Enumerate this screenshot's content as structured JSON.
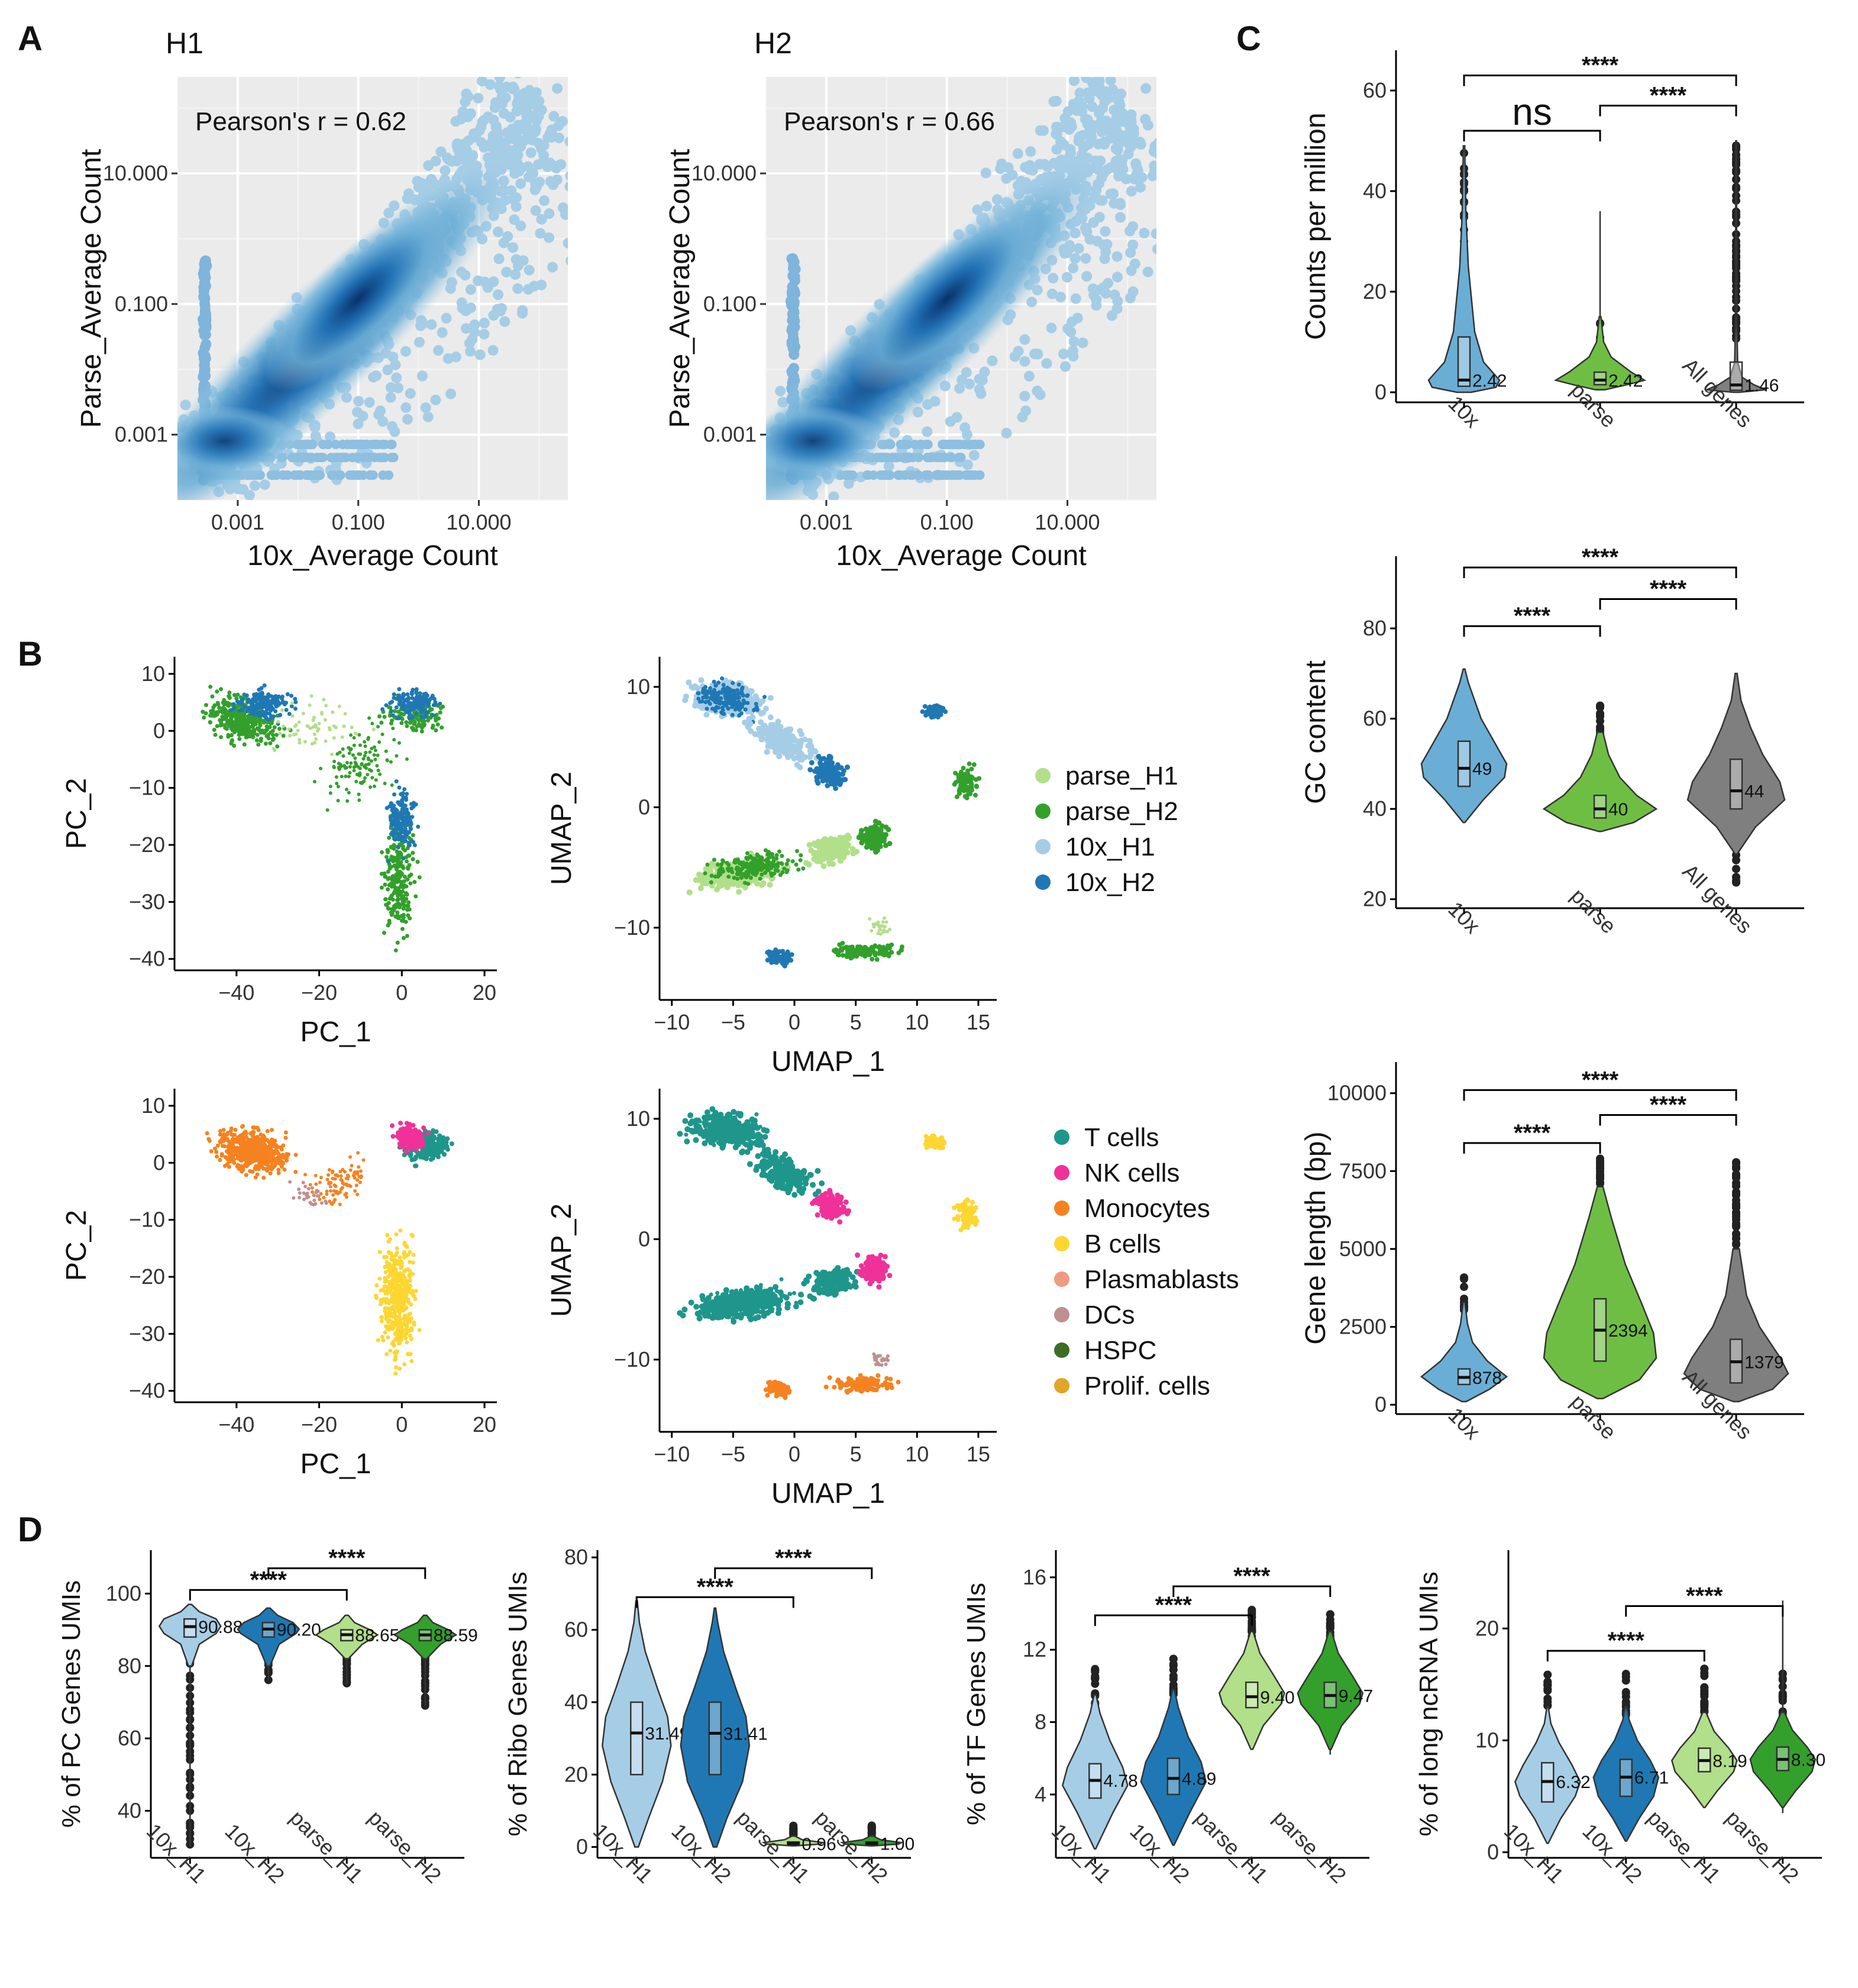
{
  "panels": {
    "A": "A",
    "B": "B",
    "C": "C",
    "D": "D"
  },
  "colors": {
    "c10x": "#6aaed6",
    "cparse": "#6fbe44",
    "call": "#7f7f7f",
    "h1_10x": "#a6cde6",
    "h2_10x": "#1f78b4",
    "h1_parse": "#b2df8a",
    "h2_parse": "#33a02c",
    "tcells": "#1f968b",
    "nk": "#f0319a",
    "mono": "#f58220",
    "b": "#fdd631",
    "plasma": "#f09a82",
    "dcs": "#c09090",
    "hspc": "#3c6e24",
    "prolif": "#e0a52a",
    "panel_bg": "#ebebeb"
  },
  "chart_data": [
    {
      "id": "A_H1",
      "type": "scatter",
      "title": "H1",
      "xlabel": "10x_Average Count",
      "ylabel": "Parse_Average Count",
      "xscale": "log10",
      "yscale": "log10",
      "xlim": [
        0.0001,
        300
      ],
      "ylim": [
        0.0001,
        300
      ],
      "xticks": [
        0.001,
        0.1,
        10
      ],
      "xtick_labels": [
        "0.001",
        "0.100",
        "10.000"
      ],
      "yticks": [
        0.001,
        0.1,
        10
      ],
      "ytick_labels": [
        "0.001",
        "0.100",
        "10.000"
      ],
      "annotation": "Pearson's r = 0.62",
      "pearson_r": 0.62
    },
    {
      "id": "A_H2",
      "type": "scatter",
      "title": "H2",
      "xlabel": "10x_Average Count",
      "ylabel": "Parse_Average Count",
      "xscale": "log10",
      "yscale": "log10",
      "xlim": [
        0.0001,
        300
      ],
      "ylim": [
        0.0001,
        300
      ],
      "xticks": [
        0.001,
        0.1,
        10
      ],
      "xtick_labels": [
        "0.001",
        "0.100",
        "10.000"
      ],
      "yticks": [
        0.001,
        0.1,
        10
      ],
      "ytick_labels": [
        "0.001",
        "0.100",
        "10.000"
      ],
      "annotation": "Pearson's r = 0.66",
      "pearson_r": 0.66
    },
    {
      "id": "B_PCA_sample",
      "type": "scatter",
      "xlabel": "PC_1",
      "ylabel": "PC_2",
      "xlim": [
        -55,
        23
      ],
      "ylim": [
        -42,
        13
      ],
      "xticks": [
        -40,
        -20,
        0,
        20
      ],
      "xtick_labels": [
        "−40",
        "−20",
        "0",
        "20"
      ],
      "yticks": [
        10,
        0,
        -10,
        -20,
        -30,
        -40
      ],
      "ytick_labels": [
        "10",
        "0",
        "−10",
        "−20",
        "−30",
        "−40"
      ],
      "legend": [
        {
          "name": "parse_H1",
          "color": "#b2df8a"
        },
        {
          "name": "parse_H2",
          "color": "#33a02c"
        },
        {
          "name": "10x_H1",
          "color": "#a6cde6"
        },
        {
          "name": "10x_H2",
          "color": "#1f78b4"
        }
      ]
    },
    {
      "id": "B_UMAP_sample",
      "type": "scatter",
      "xlabel": "UMAP_1",
      "ylabel": "UMAP_2",
      "xlim": [
        -11,
        16.5
      ],
      "ylim": [
        -16,
        12.5
      ],
      "xticks": [
        -10,
        -5,
        0,
        5,
        10,
        15
      ],
      "xtick_labels": [
        "−10",
        "−5",
        "0",
        "5",
        "10",
        "15"
      ],
      "yticks": [
        10,
        0,
        -10
      ],
      "ytick_labels": [
        "10",
        "0",
        "−10"
      ]
    },
    {
      "id": "B_PCA_celltype",
      "type": "scatter",
      "xlabel": "PC_1",
      "ylabel": "PC_2",
      "xlim": [
        -55,
        23
      ],
      "ylim": [
        -42,
        13
      ],
      "xticks": [
        -40,
        -20,
        0,
        20
      ],
      "xtick_labels": [
        "−40",
        "−20",
        "0",
        "20"
      ],
      "yticks": [
        10,
        0,
        -10,
        -20,
        -30,
        -40
      ],
      "ytick_labels": [
        "10",
        "0",
        "−10",
        "−20",
        "−30",
        "−40"
      ],
      "legend": [
        {
          "name": "T cells",
          "color": "#1f968b"
        },
        {
          "name": "NK cells",
          "color": "#f0319a"
        },
        {
          "name": "Monocytes",
          "color": "#f58220"
        },
        {
          "name": "B cells",
          "color": "#fdd631"
        },
        {
          "name": "Plasmablasts",
          "color": "#f09a82"
        },
        {
          "name": "DCs",
          "color": "#c09090"
        },
        {
          "name": "HSPC",
          "color": "#3c6e24"
        },
        {
          "name": "Prolif. cells",
          "color": "#e0a52a"
        }
      ]
    },
    {
      "id": "B_UMAP_celltype",
      "type": "scatter",
      "xlabel": "UMAP_1",
      "ylabel": "UMAP_2",
      "xlim": [
        -11,
        16.5
      ],
      "ylim": [
        -16,
        12.5
      ],
      "xticks": [
        -10,
        -5,
        0,
        5,
        10,
        15
      ],
      "xtick_labels": [
        "−10",
        "−5",
        "0",
        "5",
        "10",
        "15"
      ],
      "yticks": [
        10,
        0,
        -10
      ],
      "ytick_labels": [
        "10",
        "0",
        "−10"
      ]
    },
    {
      "id": "C_cpm",
      "type": "violin",
      "ylabel": "Counts per million",
      "ylim": [
        -2,
        68
      ],
      "yticks": [
        0,
        20,
        40,
        60
      ],
      "ytick_labels": [
        "0",
        "20",
        "40",
        "60"
      ],
      "categories": [
        "10x",
        "parse",
        "All genes"
      ],
      "medians": [
        2.42,
        2.42,
        1.46
      ],
      "median_labels": [
        "2.42",
        "2.42",
        "1.46"
      ],
      "comparisons": [
        {
          "pair": [
            "10x",
            "parse"
          ],
          "label": "ns"
        },
        {
          "pair": [
            "parse",
            "All genes"
          ],
          "label": "****"
        },
        {
          "pair": [
            "10x",
            "All genes"
          ],
          "label": "****"
        }
      ]
    },
    {
      "id": "C_gc",
      "type": "violin",
      "ylabel": "GC content",
      "ylim": [
        18,
        96
      ],
      "yticks": [
        20,
        40,
        60,
        80
      ],
      "ytick_labels": [
        "20",
        "40",
        "60",
        "80"
      ],
      "categories": [
        "10x",
        "parse",
        "All genes"
      ],
      "medians": [
        49,
        40,
        44
      ],
      "median_labels": [
        "49",
        "40",
        "44"
      ],
      "comparisons": [
        {
          "pair": [
            "10x",
            "parse"
          ],
          "label": "****"
        },
        {
          "pair": [
            "parse",
            "All genes"
          ],
          "label": "****"
        },
        {
          "pair": [
            "10x",
            "All genes"
          ],
          "label": "****"
        }
      ]
    },
    {
      "id": "C_len",
      "type": "violin",
      "ylabel": "Gene length (bp)",
      "ylim": [
        -300,
        11000
      ],
      "yticks": [
        0,
        2500,
        5000,
        7500,
        10000
      ],
      "ytick_labels": [
        "0",
        "2500",
        "5000",
        "7500",
        "10000"
      ],
      "categories": [
        "10x",
        "parse",
        "All genes"
      ],
      "medians": [
        878,
        2394,
        1379
      ],
      "median_labels": [
        "878",
        "2394",
        "1379"
      ],
      "comparisons": [
        {
          "pair": [
            "10x",
            "parse"
          ],
          "label": "****"
        },
        {
          "pair": [
            "parse",
            "All genes"
          ],
          "label": "****"
        },
        {
          "pair": [
            "10x",
            "All genes"
          ],
          "label": "****"
        }
      ]
    },
    {
      "id": "D_pc",
      "type": "violin",
      "ylabel": "% of PC Genes UMIs",
      "ylim": [
        27,
        112
      ],
      "yticks": [
        40,
        60,
        80,
        100
      ],
      "ytick_labels": [
        "40",
        "60",
        "80",
        "100"
      ],
      "categories": [
        "10x_H1",
        "10x_H2",
        "parse_H1",
        "parse_H2"
      ],
      "medians": [
        90.88,
        90.2,
        88.65,
        88.59
      ],
      "median_labels": [
        "90.88",
        "90.20",
        "88.65",
        "88.59"
      ],
      "comparisons": [
        {
          "pair": [
            "10x_H1",
            "parse_H1"
          ],
          "label": "****"
        },
        {
          "pair": [
            "10x_H2",
            "parse_H2"
          ],
          "label": "****"
        }
      ]
    },
    {
      "id": "D_ribo",
      "type": "violin",
      "ylabel": "% of Ribo Genes UMIs",
      "ylim": [
        -3,
        82
      ],
      "yticks": [
        0,
        20,
        40,
        60,
        80
      ],
      "ytick_labels": [
        "0",
        "20",
        "40",
        "60",
        "80"
      ],
      "categories": [
        "10x_H1",
        "10x_H2",
        "parse_H1",
        "parse_H2"
      ],
      "medians": [
        31.49,
        31.41,
        0.96,
        1.0
      ],
      "median_labels": [
        "31.49",
        "31.41",
        "0.96",
        "1.00"
      ],
      "comparisons": [
        {
          "pair": [
            "10x_H1",
            "parse_H1"
          ],
          "label": "****"
        },
        {
          "pair": [
            "10x_H2",
            "parse_H2"
          ],
          "label": "****"
        }
      ]
    },
    {
      "id": "D_tf",
      "type": "violin",
      "ylabel": "% of TF Genes UMIs",
      "ylim": [
        0.5,
        17.5
      ],
      "yticks": [
        4,
        8,
        12,
        16
      ],
      "ytick_labels": [
        "4",
        "8",
        "12",
        "16"
      ],
      "categories": [
        "10x_H1",
        "10x_H2",
        "parse_H1",
        "parse_H2"
      ],
      "medians": [
        4.78,
        4.89,
        9.4,
        9.47
      ],
      "median_labels": [
        "4.78",
        "4.89",
        "9.40",
        "9.47"
      ],
      "comparisons": [
        {
          "pair": [
            "10x_H1",
            "parse_H1"
          ],
          "label": "****"
        },
        {
          "pair": [
            "10x_H2",
            "parse_H2"
          ],
          "label": "****"
        }
      ]
    },
    {
      "id": "D_lnc",
      "type": "violin",
      "ylabel": "% of long ncRNA UMIs",
      "ylim": [
        -0.5,
        27
      ],
      "yticks": [
        0,
        10,
        20
      ],
      "ytick_labels": [
        "0",
        "10",
        "20"
      ],
      "categories": [
        "10x_H1",
        "10x_H2",
        "parse_H1",
        "parse_H2"
      ],
      "medians": [
        6.32,
        6.71,
        8.19,
        8.3
      ],
      "median_labels": [
        "6.32",
        "6.71",
        "8.19",
        "8.30"
      ],
      "comparisons": [
        {
          "pair": [
            "10x_H1",
            "parse_H1"
          ],
          "label": "****"
        },
        {
          "pair": [
            "10x_H2",
            "parse_H2"
          ],
          "label": "****"
        }
      ]
    }
  ]
}
